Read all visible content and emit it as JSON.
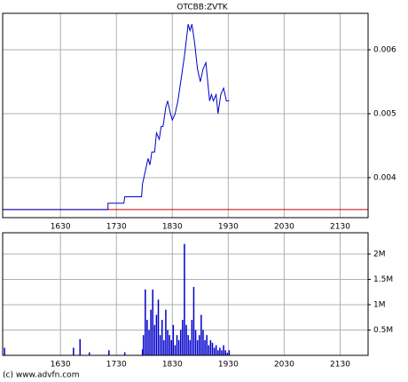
{
  "chart_data": [
    {
      "type": "line",
      "title": "OTCBB:ZVTK",
      "x": [
        928,
        1041,
        1041,
        1058,
        1059,
        1077,
        1078,
        1081,
        1084,
        1086,
        1088,
        1091,
        1093,
        1096,
        1098,
        1100,
        1103,
        1105,
        1108,
        1110,
        1113,
        1116,
        1119,
        1123,
        1127,
        1129,
        1131,
        1134,
        1137,
        1140,
        1143,
        1146,
        1148,
        1150,
        1152,
        1154,
        1157,
        1159,
        1162,
        1165,
        1168,
        1171
      ],
      "values": [
        0.0035,
        0.0035,
        0.0036,
        0.0036,
        0.0037,
        0.0037,
        0.0039,
        0.0041,
        0.0043,
        0.0042,
        0.0044,
        0.0044,
        0.0047,
        0.0046,
        0.0048,
        0.0048,
        0.0051,
        0.0052,
        0.005,
        0.0049,
        0.005,
        0.0052,
        0.0055,
        0.0059,
        0.0064,
        0.0063,
        0.0064,
        0.0061,
        0.0057,
        0.0055,
        0.0057,
        0.0058,
        0.0055,
        0.0052,
        0.0053,
        0.0052,
        0.0053,
        0.005,
        0.0053,
        0.0054,
        0.0052,
        0.0052
      ],
      "color": "#0000cc",
      "reference_line": {
        "value": 0.0035,
        "color": "#cc0000"
      },
      "xlim": [
        928,
        1320
      ],
      "ylim": [
        0.003374,
        0.00657
      ],
      "xticks": [
        {
          "value": 990,
          "label": "1630"
        },
        {
          "value": 1050,
          "label": "1730"
        },
        {
          "value": 1110,
          "label": "1830"
        },
        {
          "value": 1170,
          "label": "1930"
        },
        {
          "value": 1230,
          "label": "2030"
        },
        {
          "value": 1290,
          "label": "2130"
        }
      ],
      "yticks": [
        0.004,
        0.005,
        0.006
      ],
      "grid": true
    },
    {
      "type": "bar",
      "x": [
        930,
        1004,
        1011,
        1021,
        1042,
        1059,
        1078,
        1079,
        1081,
        1083,
        1085,
        1087,
        1089,
        1091,
        1093,
        1095,
        1097,
        1099,
        1101,
        1103,
        1105,
        1107,
        1109,
        1111,
        1113,
        1115,
        1117,
        1119,
        1121,
        1123,
        1125,
        1127,
        1129,
        1131,
        1133,
        1135,
        1137,
        1139,
        1141,
        1143,
        1145,
        1147,
        1149,
        1151,
        1153,
        1155,
        1157,
        1159,
        1161,
        1163,
        1165,
        1167,
        1169,
        1171
      ],
      "values": [
        150000,
        150000,
        320000,
        60000,
        100000,
        60000,
        120000,
        400000,
        1300000,
        700000,
        500000,
        900000,
        1300000,
        600000,
        800000,
        1100000,
        400000,
        700000,
        300000,
        900000,
        500000,
        400000,
        300000,
        600000,
        200000,
        400000,
        300000,
        500000,
        700000,
        2200000,
        600000,
        400000,
        300000,
        700000,
        1350000,
        500000,
        300000,
        400000,
        800000,
        500000,
        300000,
        400000,
        200000,
        300000,
        250000,
        150000,
        200000,
        100000,
        150000,
        100000,
        200000,
        100000,
        50000,
        100000
      ],
      "color": "#0000cc",
      "xlim": [
        928,
        1320
      ],
      "ylim": [
        0,
        2420000
      ],
      "xticks": [
        {
          "value": 990,
          "label": "1630"
        },
        {
          "value": 1050,
          "label": "1730"
        },
        {
          "value": 1110,
          "label": "1830"
        },
        {
          "value": 1170,
          "label": "1930"
        },
        {
          "value": 1230,
          "label": "2030"
        },
        {
          "value": 1290,
          "label": "2130"
        }
      ],
      "yticks": [
        {
          "value": 500000,
          "label": "0.5M"
        },
        {
          "value": 1000000,
          "label": "1M"
        },
        {
          "value": 1500000,
          "label": "1.5M"
        },
        {
          "value": 2000000,
          "label": "2M"
        }
      ],
      "grid": true
    }
  ],
  "footer": "(c) www.advfn.com"
}
